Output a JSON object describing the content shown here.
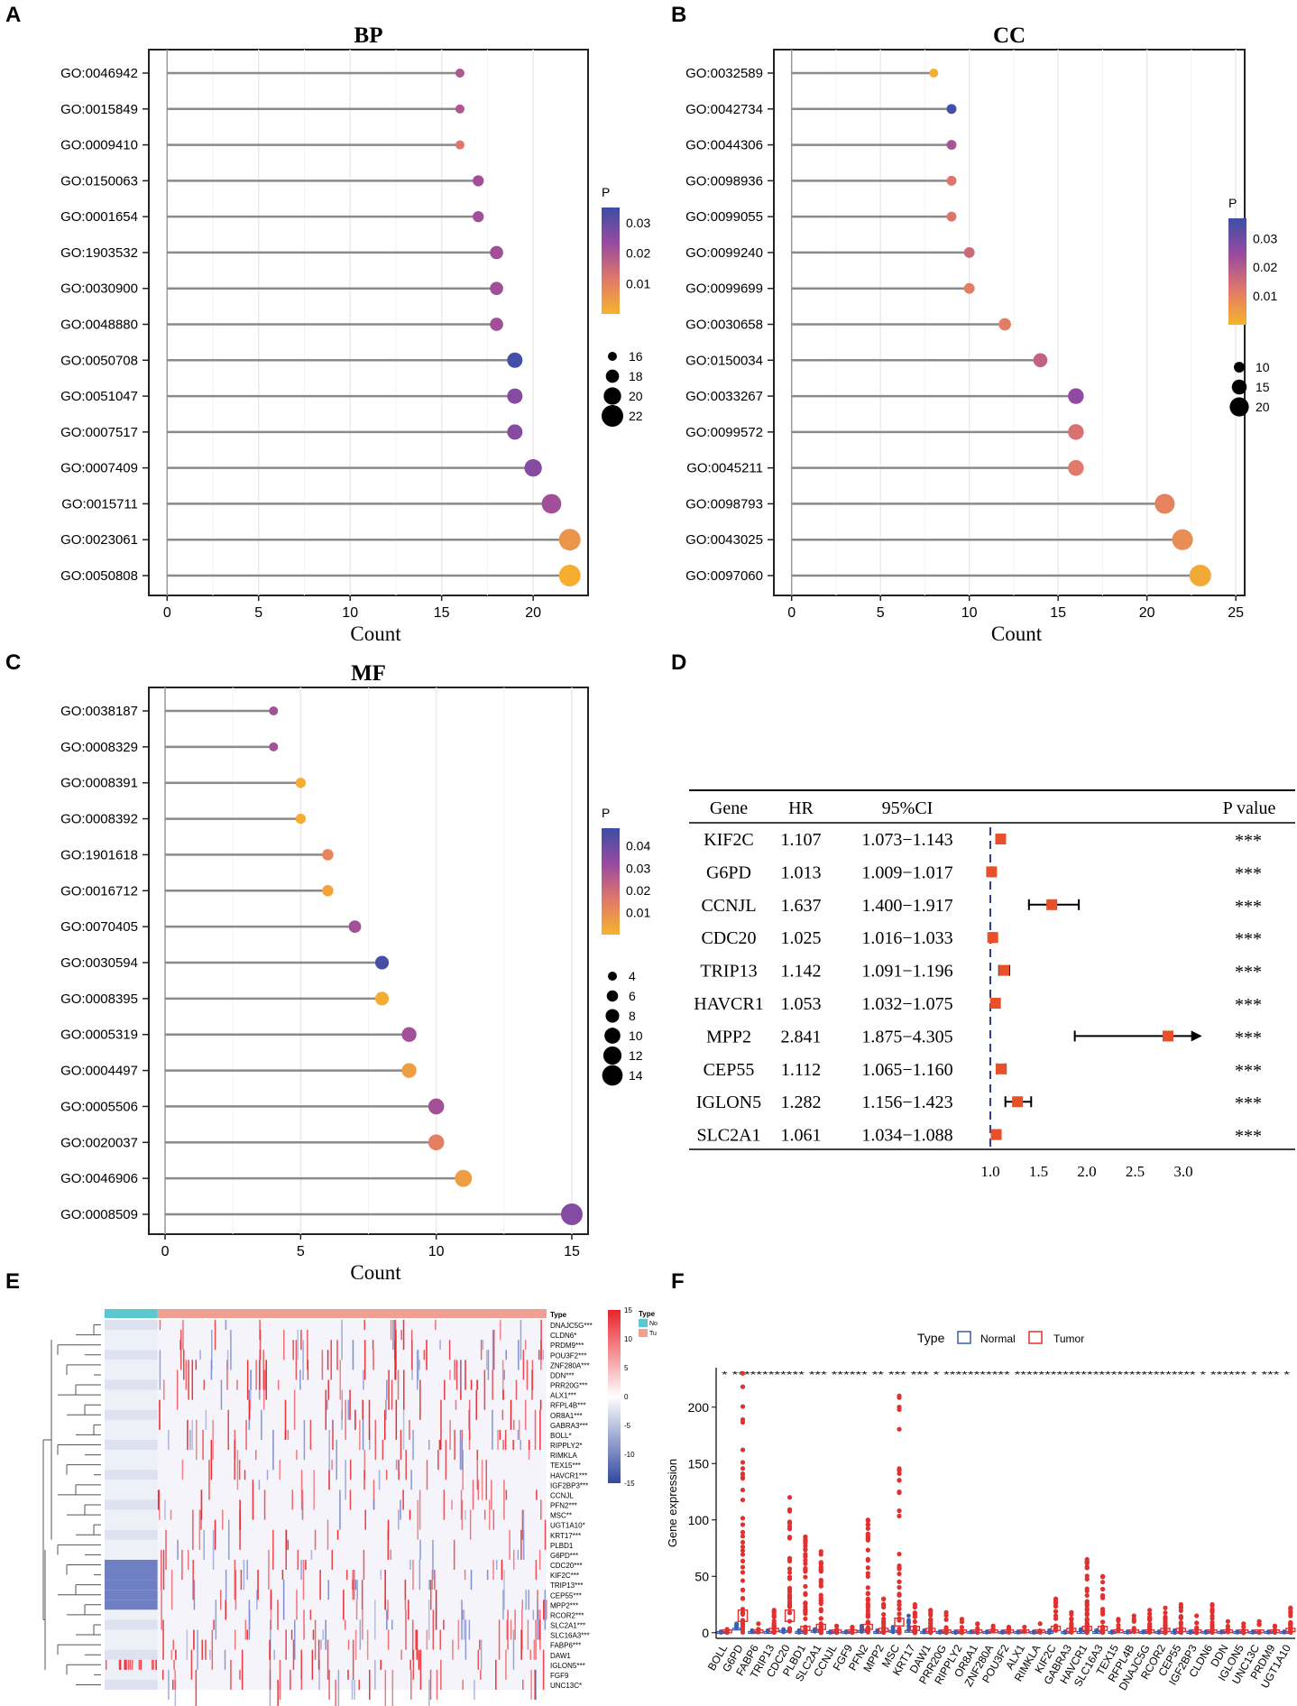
{
  "panel_letters": [
    "A",
    "B",
    "C",
    "D",
    "E",
    "F"
  ],
  "legend_p_title": "P",
  "chart_data": [
    {
      "id": "A",
      "type": "scatter",
      "subtype": "lollipop",
      "title": "BP",
      "xlabel": "Count",
      "ylabel": "",
      "xlim": [
        -1,
        23
      ],
      "xticks": [
        0,
        5,
        10,
        15,
        20
      ],
      "terms": [
        "GO:0046942",
        "GO:0015849",
        "GO:0009410",
        "GO:0150063",
        "GO:0001654",
        "GO:1903532",
        "GO:0030900",
        "GO:0048880",
        "GO:0050708",
        "GO:0051047",
        "GO:0007517",
        "GO:0007409",
        "GO:0015711",
        "GO:0023061",
        "GO:0050808"
      ],
      "counts": [
        16,
        16,
        16,
        17,
        17,
        18,
        18,
        18,
        19,
        19,
        19,
        20,
        21,
        22,
        22
      ],
      "p": [
        0.02,
        0.02,
        0.012,
        0.022,
        0.022,
        0.022,
        0.022,
        0.022,
        0.034,
        0.026,
        0.026,
        0.026,
        0.022,
        0.006,
        0.001
      ],
      "p_range": [
        0.0,
        0.035
      ],
      "p_ticks": [
        0.03,
        0.02,
        0.01
      ],
      "size_ticks": [
        16,
        18,
        20,
        22
      ]
    },
    {
      "id": "B",
      "type": "scatter",
      "subtype": "lollipop",
      "title": "CC",
      "xlabel": "Count",
      "ylabel": "",
      "xlim": [
        -1,
        25.5
      ],
      "xticks": [
        0,
        5,
        10,
        15,
        20,
        25
      ],
      "terms": [
        "GO:0032589",
        "GO:0042734",
        "GO:0044306",
        "GO:0098936",
        "GO:0099055",
        "GO:0099240",
        "GO:0099699",
        "GO:0030658",
        "GO:0150034",
        "GO:0033267",
        "GO:0099572",
        "GO:0045211",
        "GO:0098793",
        "GO:0043025",
        "GO:0097060"
      ],
      "counts": [
        8,
        9,
        9,
        9,
        9,
        10,
        10,
        12,
        14,
        16,
        16,
        16,
        21,
        22,
        23
      ],
      "p": [
        0.001,
        0.036,
        0.022,
        0.013,
        0.013,
        0.016,
        0.011,
        0.011,
        0.018,
        0.026,
        0.014,
        0.012,
        0.01,
        0.008,
        0.002
      ],
      "p_range": [
        0.0,
        0.037
      ],
      "p_ticks": [
        0.03,
        0.02,
        0.01
      ],
      "size_ticks": [
        10,
        15,
        20
      ]
    },
    {
      "id": "C",
      "type": "scatter",
      "subtype": "lollipop",
      "title": "MF",
      "xlabel": "Count",
      "ylabel": "",
      "xlim": [
        -0.6,
        15.6
      ],
      "xticks": [
        0,
        5,
        10,
        15
      ],
      "terms": [
        "GO:0038187",
        "GO:0008329",
        "GO:0008391",
        "GO:0008392",
        "GO:1901618",
        "GO:0016712",
        "GO:0070405",
        "GO:0030594",
        "GO:0008395",
        "GO:0005319",
        "GO:0004497",
        "GO:0005506",
        "GO:0020037",
        "GO:0046906",
        "GO:0008509"
      ],
      "counts": [
        4,
        4,
        5,
        5,
        6,
        6,
        7,
        8,
        8,
        9,
        9,
        10,
        10,
        11,
        15
      ],
      "p": [
        0.03,
        0.03,
        0.002,
        0.002,
        0.012,
        0.004,
        0.03,
        0.046,
        0.002,
        0.03,
        0.006,
        0.03,
        0.014,
        0.006,
        0.036
      ],
      "p_range": [
        0.0,
        0.048
      ],
      "p_ticks": [
        0.04,
        0.03,
        0.02,
        0.01
      ],
      "size_ticks": [
        4,
        6,
        8,
        10,
        12,
        14
      ]
    },
    {
      "id": "D",
      "type": "table",
      "subtype": "forest",
      "headers": [
        "Gene",
        "HR",
        "95%CI",
        "P value"
      ],
      "rows": [
        {
          "gene": "KIF2C",
          "hr": "1.107",
          "ci": "1.073−1.143",
          "p": "***"
        },
        {
          "gene": "G6PD",
          "hr": "1.013",
          "ci": "1.009−1.017",
          "p": "***"
        },
        {
          "gene": "CCNJL",
          "hr": "1.637",
          "ci": "1.400−1.917",
          "p": "***"
        },
        {
          "gene": "CDC20",
          "hr": "1.025",
          "ci": "1.016−1.033",
          "p": "***"
        },
        {
          "gene": "TRIP13",
          "hr": "1.142",
          "ci": "1.091−1.196",
          "p": "***"
        },
        {
          "gene": "HAVCR1",
          "hr": "1.053",
          "ci": "1.032−1.075",
          "p": "***"
        },
        {
          "gene": "MPP2",
          "hr": "2.841",
          "ci": "1.875−4.305",
          "p": "***"
        },
        {
          "gene": "CEP55",
          "hr": "1.112",
          "ci": "1.065−1.160",
          "p": "***"
        },
        {
          "gene": "IGLON5",
          "hr": "1.282",
          "ci": "1.156−1.423",
          "p": "***"
        },
        {
          "gene": "SLC2A1",
          "hr": "1.061",
          "ci": "1.034−1.088",
          "p": "***"
        }
      ],
      "hr_values": [
        1.107,
        1.013,
        1.637,
        1.025,
        1.142,
        1.053,
        2.841,
        1.112,
        1.282,
        1.061
      ],
      "ci_low": [
        1.073,
        1.009,
        1.4,
        1.016,
        1.091,
        1.032,
        1.875,
        1.065,
        1.156,
        1.034
      ],
      "ci_high": [
        1.143,
        1.017,
        1.917,
        1.033,
        1.196,
        1.075,
        4.305,
        1.16,
        1.423,
        1.088
      ],
      "xlim": [
        0.6,
        3.2
      ],
      "axis_max": 3.1,
      "xticks": [
        "1.0",
        "1.5",
        "2.0",
        "2.5",
        "3.0"
      ],
      "reference": 1.0
    },
    {
      "id": "E",
      "type": "heatmap",
      "genes": [
        "DNAJC5G***",
        "CLDN6*",
        "PRDM9***",
        "POU3F2***",
        "ZNF280A***",
        "DDN***",
        "PRR20G***",
        "ALX1***",
        "RFPL4B***",
        "OR8A1***",
        "GABRA3***",
        "BOLL*",
        "RIPPLY2*",
        "RIMKLA",
        "TEX15***",
        "HAVCR1***",
        "IGF2BP3***",
        "CCNJL",
        "PFN2***",
        "MSC**",
        "UGT1A10*",
        "KRT17***",
        "PLBD1",
        "G6PD***",
        "CDC20***",
        "KIF2C***",
        "TRIP13***",
        "CEP55***",
        "MPP2***",
        "RCOR2***",
        "SLC2A1***",
        "SLC16A3***",
        "FABP6***",
        "DAW1",
        "IGLON5***",
        "FGF9",
        "UNC13C*"
      ],
      "annotation_label": "Type",
      "annotation_groups": [
        "No",
        "Tu"
      ],
      "annotation_colors": [
        "#5bc8cf",
        "#f0a092"
      ],
      "normal_fraction": 0.12,
      "color_scale_ticks": [
        15,
        10,
        5,
        0,
        -5,
        -10,
        -15
      ],
      "color_low": "#3048a0",
      "color_mid": "#ffffff",
      "color_high": "#e8242a"
    },
    {
      "id": "F",
      "type": "box",
      "legend_title": "Type",
      "series": [
        "Normal",
        "Tumor"
      ],
      "series_colors": [
        "#3a5db0",
        "#e03030"
      ],
      "ylabel": "Gene expression",
      "ylim": [
        -5,
        235
      ],
      "yticks": [
        0,
        50,
        100,
        150,
        200
      ],
      "categories": [
        "BOLL",
        "G6PD",
        "FABP6",
        "TRIP13",
        "CDC20",
        "PLBD1",
        "SLC2A1",
        "CCNJL",
        "FGF9",
        "PFN2",
        "MPP2",
        "MSC",
        "KRT17",
        "DAW1",
        "PRR20G",
        "RIPPLY2",
        "OR8A1",
        "ZNF280A",
        "POU3F2",
        "ALX1",
        "RIMKLA",
        "KIF2C",
        "GABRA3",
        "HAVCR1",
        "SLC16A3",
        "TEX15",
        "RFPL4B",
        "DNAJC5G",
        "RCOR2",
        "CEP55",
        "IGF2BP3",
        "CLDN6",
        "DDN",
        "IGLON5",
        "UNC13C",
        "PRDM9",
        "UGT1A10"
      ],
      "tumor_max": [
        3,
        230,
        8,
        20,
        120,
        85,
        72,
        6,
        5,
        100,
        30,
        210,
        25,
        20,
        18,
        12,
        8,
        6,
        5,
        5,
        8,
        30,
        18,
        65,
        50,
        12,
        15,
        20,
        22,
        25,
        15,
        25,
        10,
        8,
        10,
        6,
        22
      ],
      "normal_max": [
        1,
        8,
        2,
        2,
        3,
        2,
        3,
        1,
        1,
        6,
        2,
        5,
        15,
        2,
        1,
        1,
        1,
        1,
        1,
        1,
        1,
        2,
        1,
        3,
        2,
        1,
        1,
        1,
        1,
        2,
        1,
        1,
        1,
        1,
        1,
        1,
        1
      ],
      "tumor_median": [
        0,
        10,
        0,
        1,
        10,
        2,
        3,
        0,
        0,
        3,
        1,
        6,
        2,
        1,
        0,
        0,
        0,
        0,
        0,
        0,
        0,
        2,
        1,
        2,
        2,
        0,
        0,
        0,
        1,
        1,
        0,
        0,
        0,
        0,
        0,
        0,
        1
      ],
      "normal_median": [
        0,
        3,
        0,
        0,
        1,
        0,
        1,
        0,
        0,
        1,
        0,
        1,
        1,
        0,
        0,
        0,
        0,
        0,
        0,
        0,
        0,
        0,
        0,
        0,
        0,
        0,
        0,
        0,
        0,
        0,
        0,
        0,
        0,
        0,
        0,
        0,
        0
      ],
      "significance_label": "* ************     ***          ****** ** ***     ***  *  ***********    ****************************** *  ******  *  ***  *"
    }
  ]
}
